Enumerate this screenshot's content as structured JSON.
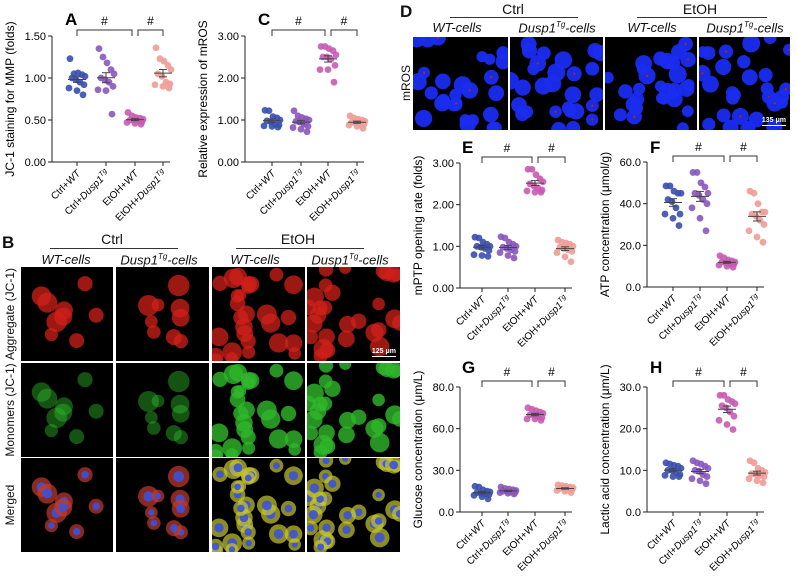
{
  "colors": {
    "ctrl_wt": "#3a4fae",
    "ctrl_dusp": "#8a55bd",
    "etoh_wt": "#c75bb2",
    "etoh_dusp": "#ee9c96",
    "axis": "#222222"
  },
  "panel_b": {
    "letter": "B",
    "groups": [
      "Ctrl",
      "EtOH"
    ],
    "columns": [
      "WT-cells",
      "Dusp1",
      "WT-cells",
      "Dusp1"
    ],
    "columns_sup": [
      "",
      "Tg",
      "",
      "Tg"
    ],
    "columns_suffix": [
      "",
      "-cells",
      "",
      "-cells"
    ],
    "rows": [
      "Aggregate (JC-1)",
      "Monomers (JC-1)",
      "Merged"
    ],
    "scale_bar": "125 μm"
  },
  "panel_d": {
    "letter": "D",
    "groups": [
      "Ctrl",
      "EtOH"
    ],
    "columns": [
      "WT-cells",
      "Dusp1",
      "WT-cells",
      "Dusp1"
    ],
    "columns_sup": [
      "",
      "Tg",
      "",
      "Tg"
    ],
    "columns_suffix": [
      "",
      "-cells",
      "",
      "-cells"
    ],
    "rows": [
      "mROS"
    ],
    "scale_bar": "135 μm"
  },
  "chart_data": [
    {
      "panel": "A",
      "type": "scatter",
      "ylabel": "JC-1 staining for MMP (folds)",
      "ylim": [
        0,
        1.5
      ],
      "yticks": [
        "0.00",
        "0.50",
        "1.00",
        "1.50"
      ],
      "categories": [
        "Ctrl+WT",
        "Ctrl+Dusp1Tg",
        "EtOH+WT",
        "EtOH+Dusp1Tg"
      ],
      "significance": [
        "#",
        "#"
      ],
      "series": [
        [
          1.23,
          1.05,
          1.06,
          1.04,
          1.02,
          1.0,
          0.98,
          0.95,
          0.92,
          0.88,
          0.85,
          0.8
        ],
        [
          1.35,
          1.25,
          1.18,
          1.1,
          1.05,
          1.0,
          0.98,
          0.95,
          0.9,
          0.86,
          0.85,
          0.57
        ],
        [
          0.59,
          0.55,
          0.53,
          0.52,
          0.51,
          0.5,
          0.5,
          0.49,
          0.48,
          0.47,
          0.46,
          0.45
        ],
        [
          1.36,
          1.23,
          1.2,
          1.15,
          1.1,
          1.05,
          1.02,
          0.95,
          0.93,
          0.92,
          0.9,
          0.88
        ]
      ]
    },
    {
      "panel": "C",
      "type": "scatter",
      "ylabel": "Relative expression of mROS",
      "ylim": [
        0,
        3
      ],
      "yticks": [
        "0.00",
        "1.00",
        "2.00",
        "3.00"
      ],
      "categories": [
        "Ctrl+WT",
        "Ctrl+Dusp1Tg",
        "EtOH+WT",
        "EtOH+Dusp1Tg"
      ],
      "significance": [
        "#",
        "#"
      ],
      "series": [
        [
          1.23,
          1.22,
          1.08,
          1.05,
          1.0,
          0.98,
          0.95,
          0.9,
          0.88,
          0.86,
          0.85,
          0.83
        ],
        [
          1.22,
          1.1,
          1.06,
          1.03,
          1.0,
          0.97,
          0.95,
          0.9,
          0.85,
          0.82,
          0.78,
          0.72
        ],
        [
          2.75,
          2.75,
          2.7,
          2.65,
          2.55,
          2.5,
          2.5,
          2.45,
          2.3,
          2.2,
          2.2,
          1.9
        ],
        [
          1.1,
          1.05,
          1.02,
          1.0,
          0.97,
          0.95,
          0.93,
          0.92,
          0.9,
          0.88,
          0.85,
          0.8
        ]
      ]
    },
    {
      "panel": "E",
      "type": "scatter",
      "ylabel": "mPTP opening rate (folds)",
      "ylim": [
        0,
        3
      ],
      "yticks": [
        "0.00",
        "1.00",
        "2.00",
        "3.00"
      ],
      "categories": [
        "Ctrl+WT",
        "Ctrl+Dusp1Tg",
        "EtOH+WT",
        "EtOH+Dusp1Tg"
      ],
      "significance": [
        "#",
        "#"
      ],
      "series": [
        [
          1.22,
          1.2,
          1.1,
          1.05,
          1.0,
          1.0,
          0.98,
          0.95,
          0.9,
          0.8,
          0.78,
          0.76
        ],
        [
          1.23,
          1.2,
          1.1,
          1.05,
          1.0,
          0.98,
          0.95,
          0.92,
          0.88,
          0.85,
          0.78,
          0.72
        ],
        [
          2.85,
          2.85,
          2.72,
          2.62,
          2.55,
          2.5,
          2.45,
          2.4,
          2.35,
          2.33,
          2.3,
          2.3
        ],
        [
          1.15,
          1.1,
          1.08,
          1.05,
          1.0,
          0.98,
          0.95,
          0.92,
          0.88,
          0.85,
          0.75,
          0.63
        ]
      ]
    },
    {
      "panel": "F",
      "type": "scatter",
      "ylabel": "ATP concentration (μmol/g)",
      "ylim": [
        0,
        60
      ],
      "yticks": [
        "0.0",
        "20.0",
        "40.0",
        "60.0"
      ],
      "categories": [
        "Ctrl+WT",
        "Ctrl+Dusp1Tg",
        "EtOH+WT",
        "EtOH+Dusp1Tg"
      ],
      "significance": [
        "#",
        "#"
      ],
      "series": [
        [
          48.5,
          48.5,
          46,
          45,
          45,
          42,
          41,
          38,
          35,
          35,
          33,
          29.5
        ],
        [
          55,
          55,
          50,
          48,
          45,
          45,
          44,
          42,
          40,
          38,
          33,
          27
        ],
        [
          15,
          14,
          13,
          12.5,
          12,
          12,
          11.5,
          11,
          11,
          10.5,
          10,
          9.5
        ],
        [
          46,
          45,
          40,
          36,
          36,
          35,
          34,
          32,
          30,
          27,
          24,
          21.5
        ]
      ]
    },
    {
      "panel": "G",
      "type": "scatter",
      "ylabel": "Glucose concentration (μm/L)",
      "ylim": [
        0,
        90
      ],
      "yticks": [
        "0.0",
        "30.0",
        "60.0",
        "80.0"
      ],
      "categories": [
        "Ctrl+WT",
        "Ctrl+Dusp1Tg",
        "EtOH+WT",
        "EtOH+Dusp1Tg"
      ],
      "significance": [
        "#",
        "#"
      ],
      "series": [
        [
          18.5,
          18,
          16,
          15,
          14.5,
          14,
          13.5,
          13,
          12.5,
          12,
          11,
          9.5
        ],
        [
          18,
          17,
          16.5,
          16,
          15.5,
          15,
          15,
          14.5,
          14,
          14,
          13.5,
          13
        ],
        [
          75,
          74,
          73,
          72,
          71,
          70,
          70,
          69,
          68,
          67,
          67,
          66
        ],
        [
          19.5,
          19,
          18.5,
          18,
          17.5,
          17,
          17,
          16.5,
          16,
          15.5,
          15,
          14
        ]
      ]
    },
    {
      "panel": "H",
      "type": "scatter",
      "ylabel": "Lactic acid concentration (μm/L)",
      "ylim": [
        0,
        30
      ],
      "yticks": [
        "0.0",
        "10.0",
        "20.0",
        "30.0"
      ],
      "categories": [
        "Ctrl+WT",
        "Ctrl+Dusp1Tg",
        "EtOH+WT",
        "EtOH+Dusp1Tg"
      ],
      "significance": [
        "#",
        "#"
      ],
      "series": [
        [
          11.8,
          11.5,
          11.2,
          11,
          10.5,
          10,
          10,
          9.5,
          9,
          8.8,
          8.5,
          8.5
        ],
        [
          12.3,
          11.8,
          11.5,
          11,
          10.5,
          10,
          9.8,
          9,
          8.5,
          8,
          7.5,
          6.8
        ],
        [
          28,
          28,
          27,
          26.5,
          26,
          25.5,
          25,
          24,
          23,
          22,
          21,
          19.8
        ],
        [
          12.3,
          11.8,
          10.5,
          10,
          9.5,
          9.2,
          9,
          8.8,
          8.5,
          8,
          7.5,
          7
        ]
      ]
    }
  ]
}
